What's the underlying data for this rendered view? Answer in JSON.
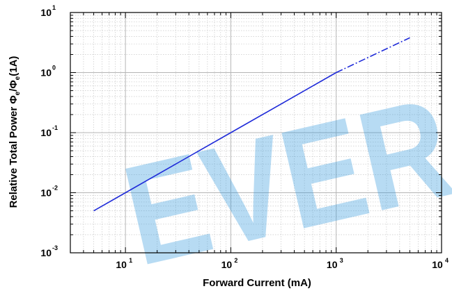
{
  "chart_data": {
    "type": "line",
    "title": "",
    "xlabel": "Forward Current (mA)",
    "ylabel": {
      "prefix": "Relative Total Power  ",
      "phi1": "Φ",
      "sub1": "e",
      "slash": "/",
      "phi2": "Φ",
      "sub2": "e",
      "suffix": "(1A)"
    },
    "x_scale": "log",
    "y_scale": "log",
    "xlim": [
      3,
      10000
    ],
    "ylim": [
      0.001,
      10
    ],
    "x_ticks": [
      {
        "base": "10",
        "exp": "1",
        "value": 10
      },
      {
        "base": "10",
        "exp": "2",
        "value": 100
      },
      {
        "base": "10",
        "exp": "3",
        "value": 1000
      },
      {
        "base": "10",
        "exp": "4",
        "value": 10000
      }
    ],
    "y_ticks": [
      {
        "base": "10",
        "exp": "-3",
        "value": 0.001
      },
      {
        "base": "10",
        "exp": "-2",
        "value": 0.01
      },
      {
        "base": "10",
        "exp": "-1",
        "value": 0.1
      },
      {
        "base": "10",
        "exp": "0",
        "value": 1
      },
      {
        "base": "10",
        "exp": "1",
        "value": 10
      }
    ],
    "grid": true,
    "series": [
      {
        "style": "solid",
        "color": "#1f2bd9",
        "x": [
          5,
          10,
          100,
          1000
        ],
        "y": [
          0.005,
          0.01,
          0.1,
          1.0
        ]
      },
      {
        "style": "dashdot",
        "color": "#1f2bd9",
        "x": [
          1000,
          5000
        ],
        "y": [
          1.0,
          3.8
        ]
      }
    ],
    "watermark": "EVER"
  }
}
